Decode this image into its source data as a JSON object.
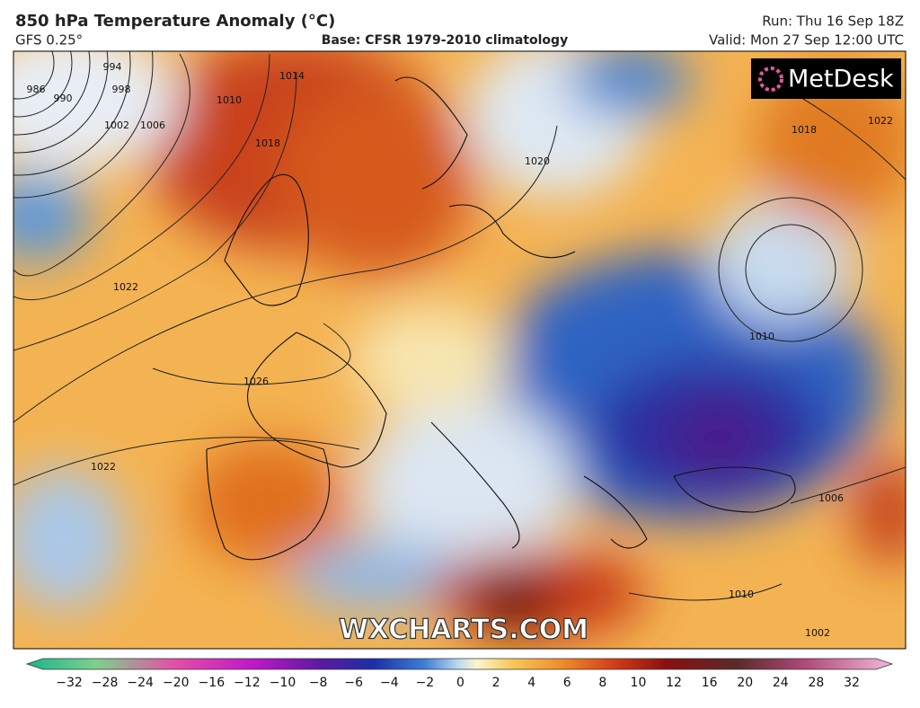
{
  "header": {
    "title": "850 hPa Temperature Anomaly (°C)",
    "model": "GFS 0.25°",
    "base": "Base: CFSR 1979-2010 climatology",
    "run": "Run: Thu 16 Sep 18Z",
    "valid": "Valid: Mon 27 Sep 12:00 UTC"
  },
  "map": {
    "logo": "MetDesk",
    "watermark": "WXCHARTS.COM",
    "isobar_labels": [
      "986",
      "990",
      "994",
      "998",
      "1002",
      "1006",
      "1010",
      "1014",
      "1018",
      "1022",
      "1026",
      "1022",
      "1020",
      "1018",
      "1022",
      "1010",
      "1006",
      "1010",
      "1002"
    ]
  },
  "colorbar": {
    "ticks": [
      "−32",
      "−28",
      "−24",
      "−20",
      "−16",
      "−12",
      "−10",
      "−8",
      "−6",
      "−4",
      "−2",
      "0",
      "2",
      "4",
      "6",
      "8",
      "10",
      "12",
      "16",
      "20",
      "24",
      "28",
      "32"
    ]
  }
}
